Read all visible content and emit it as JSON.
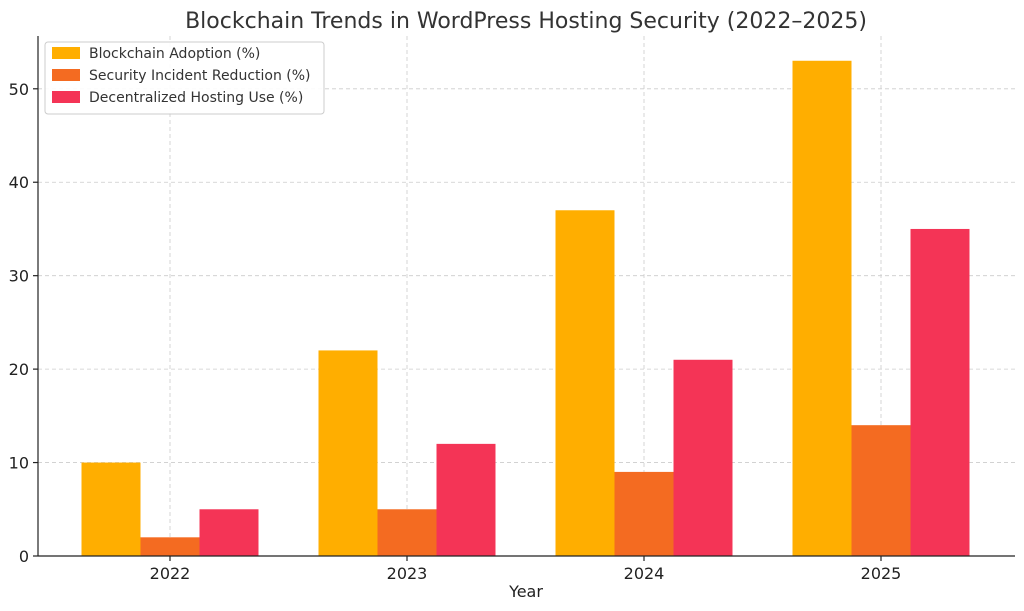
{
  "chart_data": {
    "type": "bar",
    "title": "Blockchain Trends in WordPress Hosting Security (2022–2025)",
    "xlabel": "Year",
    "ylabel": "",
    "categories": [
      "2022",
      "2023",
      "2024",
      "2025"
    ],
    "series": [
      {
        "name": "Blockchain Adoption (%)",
        "values": [
          10,
          22,
          37,
          53
        ],
        "color": "#FFAE00"
      },
      {
        "name": "Security Incident Reduction (%)",
        "values": [
          2,
          5,
          9,
          14
        ],
        "color": "#F46B21"
      },
      {
        "name": "Decentralized Hosting Use (%)",
        "values": [
          5,
          12,
          21,
          35
        ],
        "color": "#F43456"
      }
    ],
    "ylim": [
      0,
      55.65
    ],
    "yticks": [
      0,
      10,
      20,
      30,
      40,
      50
    ],
    "grid": true,
    "legend_position": "top-left"
  }
}
